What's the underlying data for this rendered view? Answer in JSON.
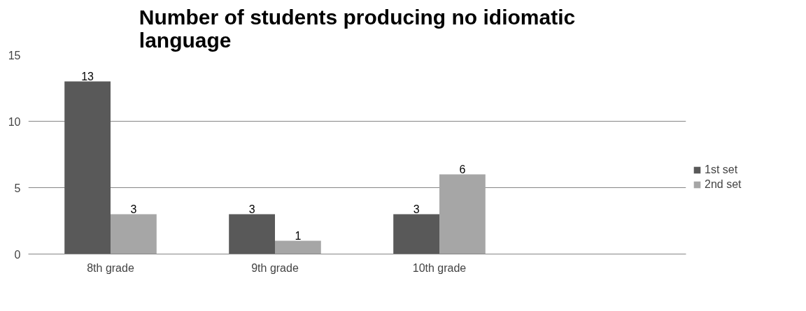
{
  "chart_data": {
    "type": "bar",
    "title": "Number of students producing no idiomatic language",
    "categories": [
      "8th grade",
      "9th grade",
      "10th grade",
      null
    ],
    "series": [
      {
        "name": "1st set",
        "color": "#595959",
        "values": [
          13,
          3,
          3,
          null
        ]
      },
      {
        "name": "2nd set",
        "color": "#a6a6a6",
        "values": [
          3,
          1,
          6,
          null
        ]
      }
    ],
    "ylim": [
      0,
      15
    ],
    "yticks": [
      0,
      5,
      10,
      15
    ],
    "grid": "y",
    "legend": "right",
    "data_labels": true
  }
}
